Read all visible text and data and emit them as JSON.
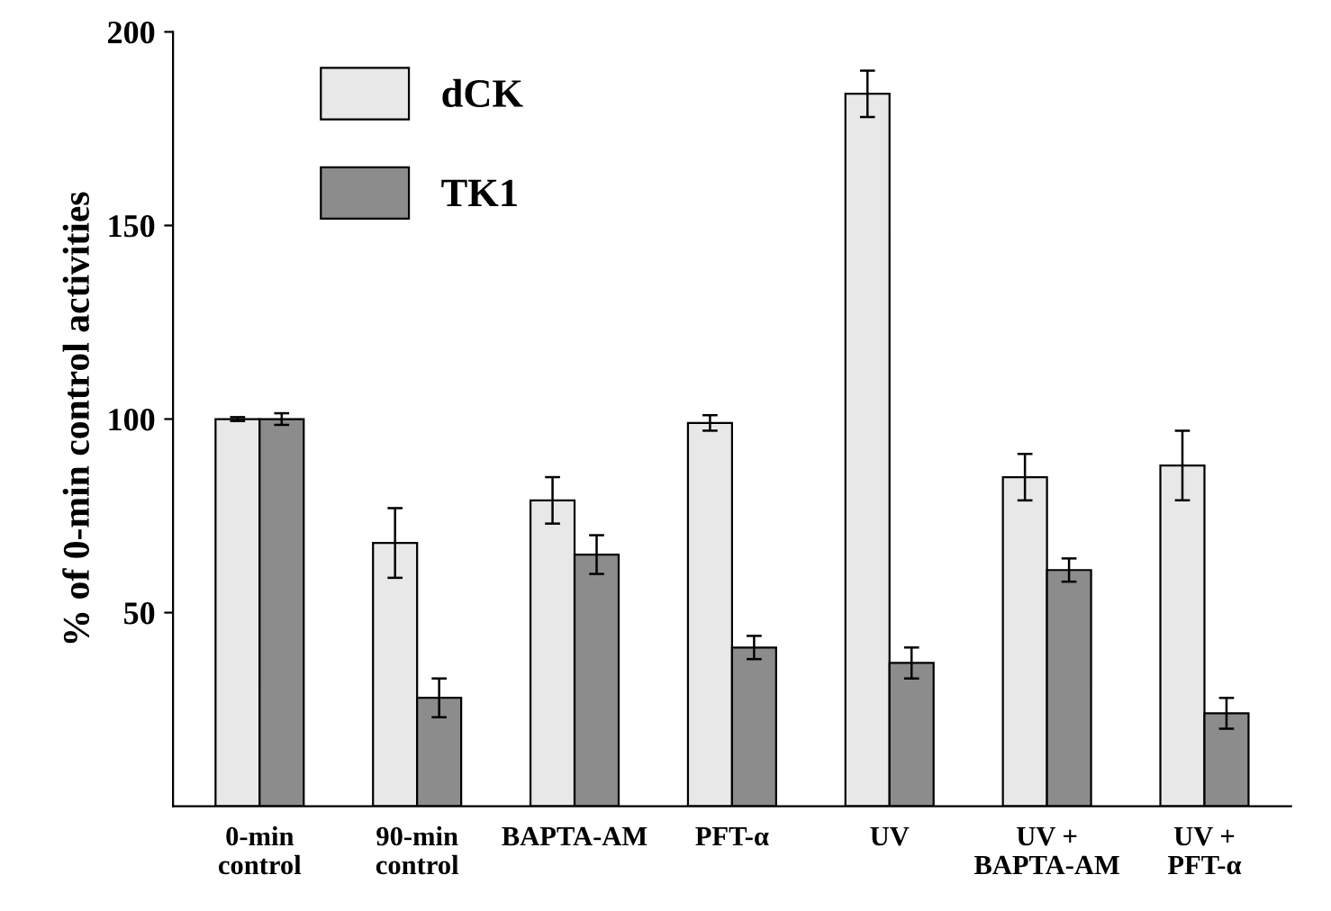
{
  "chart_data": {
    "type": "bar",
    "ylabel": "% of 0-min control activities",
    "categories": [
      "0-min\ncontrol",
      "90-min\ncontrol",
      "BAPTA-AM",
      "PFT-α",
      "UV",
      "UV +\nBAPTA-AM",
      "UV +\nPFT-α"
    ],
    "series": [
      {
        "name": "dCK",
        "color": "#e8e8e8",
        "values": [
          100,
          68,
          79,
          99,
          184,
          85,
          88
        ],
        "errors": [
          0.5,
          9,
          6,
          2,
          6,
          6,
          9
        ]
      },
      {
        "name": "TK1",
        "color": "#8c8c8c",
        "values": [
          100,
          28,
          65,
          41,
          37,
          61,
          24
        ],
        "errors": [
          1.5,
          5,
          5,
          3,
          4,
          3,
          4
        ]
      }
    ],
    "ylim": [
      0,
      200
    ],
    "yticks": [
      50,
      100,
      150,
      200
    ],
    "grid": false,
    "legend": "top left"
  }
}
